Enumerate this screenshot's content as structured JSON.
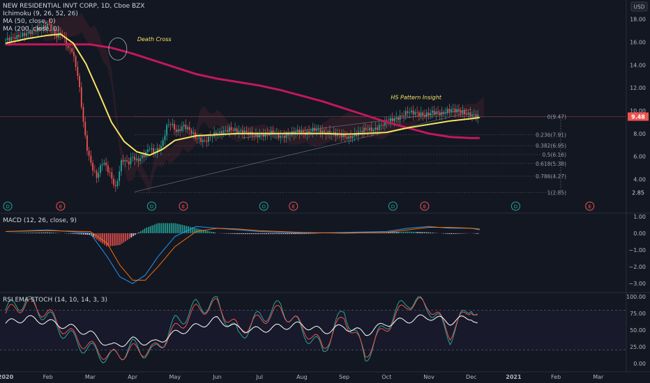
{
  "header": {
    "symbol_title": "NEW RESIDENTIAL INVT CORP, 1D, Cboe BZX",
    "indicators": [
      "Ichimoku (9, 26, 52, 26)",
      "MA (50, close, 0)",
      "MA (200, close, 0)"
    ],
    "currency": "USD"
  },
  "annotations": {
    "death_cross": "Death Cross",
    "hs_pattern": "HS Pattern Insight"
  },
  "price_axis": {
    "ticks": [
      "18.00",
      "16.00",
      "14.00",
      "12.00",
      "10.00",
      "8.00",
      "6.00",
      "4.00"
    ],
    "last_price_label": "9.48",
    "low_label": "2.85"
  },
  "fib_levels": [
    "0(9.47)",
    "0.236(7.91)",
    "0.382(6.95)",
    "0.5(6.16)",
    "0.618(5.38)",
    "0.786(4.27)",
    "1(2.85)"
  ],
  "events": [
    "D",
    "E",
    "D",
    "E",
    "D",
    "E",
    "D",
    "E",
    "D",
    "E"
  ],
  "macd": {
    "label": "MACD (12, 26, close, 9)",
    "ticks": [
      "1.00",
      "0.00",
      "−1.00",
      "−2.00",
      "−3.00"
    ]
  },
  "rsi": {
    "label": "RSI EMA STOCH (14, 10, 14, 3, 3)",
    "ticks": [
      "100.00",
      "75.00",
      "50.00",
      "25.00",
      "0.00"
    ]
  },
  "time_axis": [
    "2020",
    "Feb",
    "Mar",
    "Apr",
    "May",
    "Jun",
    "Jul",
    "Aug",
    "Sep",
    "Oct",
    "Nov",
    "Dec",
    "2021",
    "Feb",
    "Mar"
  ],
  "colors": {
    "background": "#131722",
    "up": "#26a69a",
    "down": "#ef5350",
    "ma50": "#f7e463",
    "ma200": "#c2185b",
    "macd_line": "#2196f3",
    "signal_line": "#ff6d00",
    "stoch_k": "#26a69a",
    "stoch_d": "#ef5350",
    "rsi": "#ffffff"
  },
  "chart_data": {
    "type": "line",
    "title": "NEW RESIDENTIAL INVT CORP, 1D, Cboe BZX",
    "x_unit": "month",
    "price_range": [
      2.5,
      19.2
    ],
    "close_path": {
      "x": [
        0.0,
        0.3,
        0.6,
        0.9,
        1.0,
        1.05,
        1.1,
        1.2,
        1.3,
        1.4,
        1.5,
        1.55,
        1.6,
        1.65,
        1.7,
        1.75,
        1.8,
        1.85,
        1.9,
        1.95,
        2.05,
        2.15,
        2.3,
        2.45,
        2.6,
        2.75,
        2.9,
        3.0,
        3.1,
        3.2,
        3.3,
        3.4,
        3.5,
        3.6,
        3.7,
        3.8,
        3.9,
        4.05,
        4.2,
        4.35,
        4.5,
        4.7,
        4.9,
        5.1,
        5.3,
        5.5,
        5.7,
        5.9,
        6.1,
        6.3,
        6.5,
        6.7,
        6.9,
        7.1,
        7.3,
        7.5,
        7.7,
        7.9,
        8.1,
        8.3,
        8.5,
        8.7,
        8.9,
        9.1,
        9.3,
        9.5,
        9.7,
        9.9,
        10.1,
        10.3,
        10.5,
        10.7,
        10.9,
        11.05,
        11.2
      ],
      "values": [
        16.2,
        16.5,
        16.9,
        17.3,
        17.6,
        17.4,
        17.0,
        16.5,
        16.8,
        16.2,
        15.2,
        15.6,
        14.8,
        14.0,
        13.2,
        11.8,
        10.2,
        8.6,
        7.2,
        6.2,
        5.0,
        4.2,
        5.6,
        4.6,
        3.2,
        5.8,
        5.4,
        6.0,
        5.6,
        5.9,
        6.2,
        6.8,
        6.3,
        6.6,
        7.0,
        8.6,
        8.9,
        8.1,
        8.7,
        8.3,
        7.6,
        7.3,
        7.9,
        8.1,
        8.4,
        8.2,
        8.1,
        7.8,
        7.9,
        8.1,
        7.7,
        7.9,
        8.2,
        8.0,
        8.4,
        8.1,
        8.0,
        7.9,
        7.6,
        8.0,
        8.4,
        8.3,
        8.8,
        9.2,
        9.4,
        9.9,
        9.8,
        9.6,
        9.9,
        9.7,
        10.1,
        10.0,
        9.7,
        9.6,
        9.48
      ]
    },
    "ma50": {
      "x": [
        0.0,
        0.5,
        1.0,
        1.3,
        1.6,
        1.9,
        2.2,
        2.5,
        2.8,
        3.1,
        3.4,
        3.7,
        4.0,
        4.5,
        5.0,
        5.5,
        6.0,
        6.5,
        7.0,
        7.5,
        8.0,
        8.5,
        9.0,
        9.5,
        10.0,
        10.5,
        11.0,
        11.2
      ],
      "values": [
        15.9,
        16.3,
        16.6,
        16.7,
        15.9,
        14.1,
        11.6,
        9.0,
        7.3,
        6.4,
        6.1,
        6.6,
        7.4,
        7.8,
        7.9,
        8.0,
        8.0,
        8.0,
        8.0,
        8.0,
        7.95,
        8.0,
        8.1,
        8.5,
        8.8,
        9.1,
        9.3,
        9.4
      ]
    },
    "ma200": {
      "x": [
        0.0,
        1.0,
        2.0,
        2.5,
        3.0,
        3.5,
        4.0,
        4.5,
        5.0,
        5.5,
        6.0,
        6.5,
        7.0,
        7.5,
        8.0,
        8.5,
        9.0,
        9.5,
        10.0,
        10.5,
        11.0,
        11.2
      ],
      "values": [
        15.8,
        15.8,
        15.8,
        15.5,
        15.0,
        14.4,
        13.8,
        13.2,
        12.8,
        12.5,
        12.2,
        11.8,
        11.3,
        10.8,
        10.2,
        9.6,
        9.0,
        8.5,
        8.0,
        7.7,
        7.6,
        7.6
      ]
    },
    "fibonacci": {
      "level_0": 9.47,
      "level_1": 2.85
    },
    "macd": {
      "ylim": [
        -3.2,
        1.2
      ],
      "x": [
        0,
        1,
        2,
        2.4,
        2.7,
        3.0,
        3.3,
        3.6,
        4.0,
        4.5,
        5.0,
        5.5,
        6.0,
        7.0,
        8.0,
        9.0,
        9.5,
        10.0,
        10.5,
        11.0,
        11.2
      ],
      "macd": [
        0.1,
        0.2,
        0.0,
        -1.4,
        -2.6,
        -3.0,
        -2.5,
        -1.4,
        -0.2,
        0.4,
        0.3,
        0.2,
        0.1,
        0.0,
        0.05,
        0.1,
        0.3,
        0.4,
        0.3,
        0.3,
        0.2
      ],
      "signal": [
        0.1,
        0.15,
        0.1,
        -0.6,
        -1.9,
        -2.8,
        -2.8,
        -2.0,
        -0.8,
        0.1,
        0.3,
        0.25,
        0.15,
        0.05,
        0.0,
        0.05,
        0.2,
        0.35,
        0.35,
        0.3,
        0.25
      ]
    },
    "rsi_stoch": {
      "ylim": [
        0,
        100
      ],
      "x": [
        0,
        0.5,
        1,
        1.5,
        2,
        2.5,
        3,
        3.5,
        4,
        4.5,
        5,
        5.5,
        6,
        6.5,
        7,
        7.5,
        8,
        8.5,
        9,
        9.5,
        10,
        10.5,
        11,
        11.2
      ],
      "rsi": [
        60,
        68,
        62,
        55,
        45,
        25,
        35,
        30,
        45,
        55,
        66,
        52,
        50,
        55,
        58,
        48,
        55,
        45,
        60,
        65,
        70,
        62,
        70,
        55
      ],
      "stoch_k": [
        80,
        95,
        70,
        40,
        20,
        8,
        25,
        15,
        60,
        85,
        90,
        40,
        70,
        85,
        50,
        20,
        80,
        10,
        60,
        95,
        85,
        40,
        90,
        60
      ],
      "stoch_d": [
        75,
        90,
        75,
        45,
        25,
        10,
        20,
        20,
        50,
        80,
        88,
        50,
        65,
        80,
        55,
        25,
        70,
        15,
        55,
        90,
        88,
        45,
        85,
        65
      ]
    }
  }
}
